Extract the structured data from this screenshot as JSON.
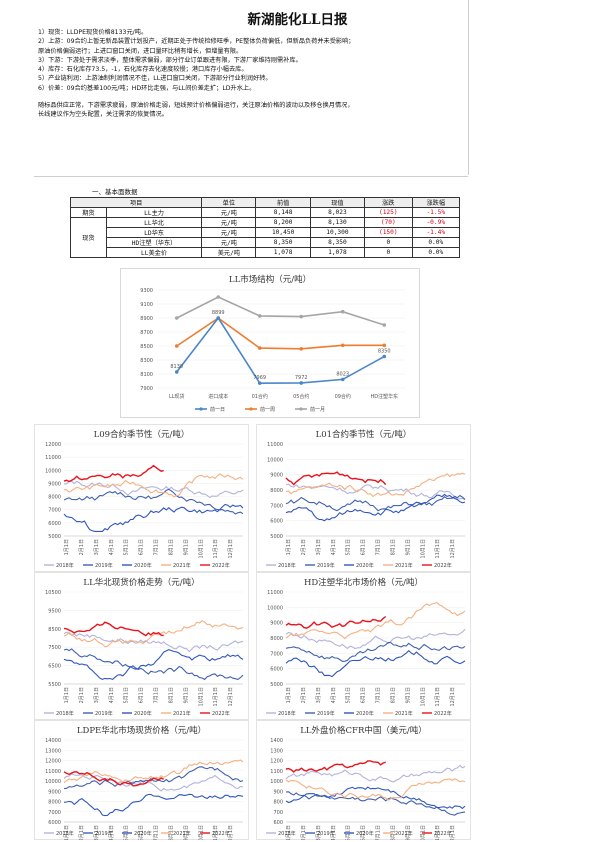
{
  "report": {
    "title": "新湖能化LL日报",
    "lines": [
      "1）现货：LLDPE现货价格8133元/吨。",
      "2）上游：09合约上暂无新品装置计划投产，近期正处于传统检修旺季，PE整体负荷偏低，但新品负荷并未受影响；",
      "原油价格偏弱运行；上进口窗口关闭，进口量环比稍有增长，但增量有限。",
      "3）下游：下游处于需求淡季，整体需求偏弱，部分行业订单跟进有限，下游厂家维持刚需补库。",
      "4）库存：石化库存73.5，-1，石化库存去化速度较慢；港口库存小幅去库。",
      "5）产业链利润：上游油制利润情况不佳，LL进口窗口关闭，下游部分行业利润好转。",
      "6）价差：09合约基差100元/吨；HD环比走强，与LL间价差走扩；LD升水上。"
    ],
    "summary": [
      "随标品供应正常，下游需求疲弱，原油价格走弱，短线预计价格偏弱运行，关注原油价格的波动以及移仓换月情况，",
      "长线建议作为空头配置，关注需求的恢复情况。"
    ]
  },
  "basic": {
    "section_title": "一、基本面数据",
    "headers": [
      "项目",
      "单位",
      "前值",
      "现值",
      "涨跌",
      "涨跌幅"
    ],
    "groups": [
      {
        "group": "期货",
        "rows": [
          {
            "item": "LL主力",
            "unit": "元/吨",
            "prev": "8,148",
            "curr": "8,023",
            "chg": "(125)",
            "pct": "-1.5%",
            "neg": true
          }
        ]
      },
      {
        "group": "现货",
        "rows": [
          {
            "item": "LL华北",
            "unit": "元/吨",
            "prev": "8,200",
            "curr": "8,130",
            "chg": "(70)",
            "pct": "-0.9%",
            "neg": true
          },
          {
            "item": "LD华东",
            "unit": "元/吨",
            "prev": "10,450",
            "curr": "10,300",
            "chg": "(150)",
            "pct": "-1.4%",
            "neg": true
          },
          {
            "item": "HD注塑（华东）",
            "unit": "元/吨",
            "prev": "8,350",
            "curr": "8,350",
            "chg": "0",
            "pct": "0.0%",
            "neg": false
          },
          {
            "item": "LL美金价",
            "unit": "美元/吨",
            "prev": "1,078",
            "curr": "1,078",
            "chg": "0",
            "pct": "0.0%",
            "neg": false
          }
        ]
      }
    ]
  },
  "market_structure": {
    "title": "LL市场结构（元/吨）",
    "categories": [
      "LL现货",
      "进口成本",
      "01合约",
      "05合约",
      "09合约",
      "HD注塑华东"
    ],
    "series": [
      {
        "name": "前一日",
        "color": "#4a86c8",
        "values": [
          8130,
          8899,
          7969,
          7972,
          8023,
          8350
        ]
      },
      {
        "name": "前一周",
        "color": "#ed7d31",
        "values": [
          8500,
          8899,
          8470,
          8460,
          8510,
          8510
        ]
      },
      {
        "name": "前一月",
        "color": "#a5a5a5",
        "values": [
          8900,
          9200,
          8930,
          8920,
          8990,
          8800
        ]
      }
    ],
    "labels": [
      "8130",
      "8899",
      "7969",
      "7972",
      "8023",
      "8350"
    ],
    "ylim": [
      7900,
      9300
    ],
    "yticks": [
      7900,
      8100,
      8300,
      8500,
      8700,
      8900,
      9100,
      9300
    ]
  },
  "seasonal_legend": [
    {
      "name": "2018年",
      "color": "#b3b3dd"
    },
    {
      "name": "2019年",
      "color": "#4060b0"
    },
    {
      "name": "2020年",
      "color": "#2f55c0"
    },
    {
      "name": "2021年",
      "color": "#f4b183"
    },
    {
      "name": "2022年",
      "color": "#e8141c"
    }
  ],
  "months": [
    "1月1日",
    "2月1日",
    "3月1日",
    "4月1日",
    "5月1日",
    "6月1日",
    "7月1日",
    "8月1日",
    "9月1日",
    "10月1日",
    "11月1日",
    "12月1日"
  ],
  "seasonal_charts": [
    {
      "title": "L09合约季节性（元/吨）",
      "yticks": [
        5000,
        6000,
        7000,
        8000,
        9000,
        10000,
        11000,
        12000
      ],
      "ylim": [
        5000,
        12000
      ]
    },
    {
      "title": "L01合约季节性（元/吨）",
      "yticks": [
        5000,
        6000,
        7000,
        8000,
        9000,
        10000,
        11000
      ],
      "ylim": [
        5000,
        11000
      ]
    },
    {
      "title": "LL华北现货价格走势（元/吨）",
      "yticks": [
        5500,
        6500,
        7500,
        8500,
        9500,
        10500
      ],
      "ylim": [
        5500,
        10500
      ]
    },
    {
      "title": "HD注塑华北市场价格（元/吨）",
      "yticks": [
        5000,
        6000,
        7000,
        8000,
        9000,
        10000,
        11000
      ],
      "ylim": [
        5000,
        11000
      ]
    },
    {
      "title": "LDPE华北市场现货价格（元/吨）",
      "yticks": [
        6000,
        7000,
        8000,
        9000,
        10000,
        11000,
        12000,
        13000,
        14000
      ],
      "ylim": [
        6000,
        14000
      ]
    },
    {
      "title": "LL外盘价格CFR中国（美元/吨）",
      "yticks": [
        600,
        700,
        800,
        900,
        1000,
        1100,
        1200,
        1300,
        1400
      ],
      "ylim": [
        600,
        1400
      ]
    }
  ]
}
